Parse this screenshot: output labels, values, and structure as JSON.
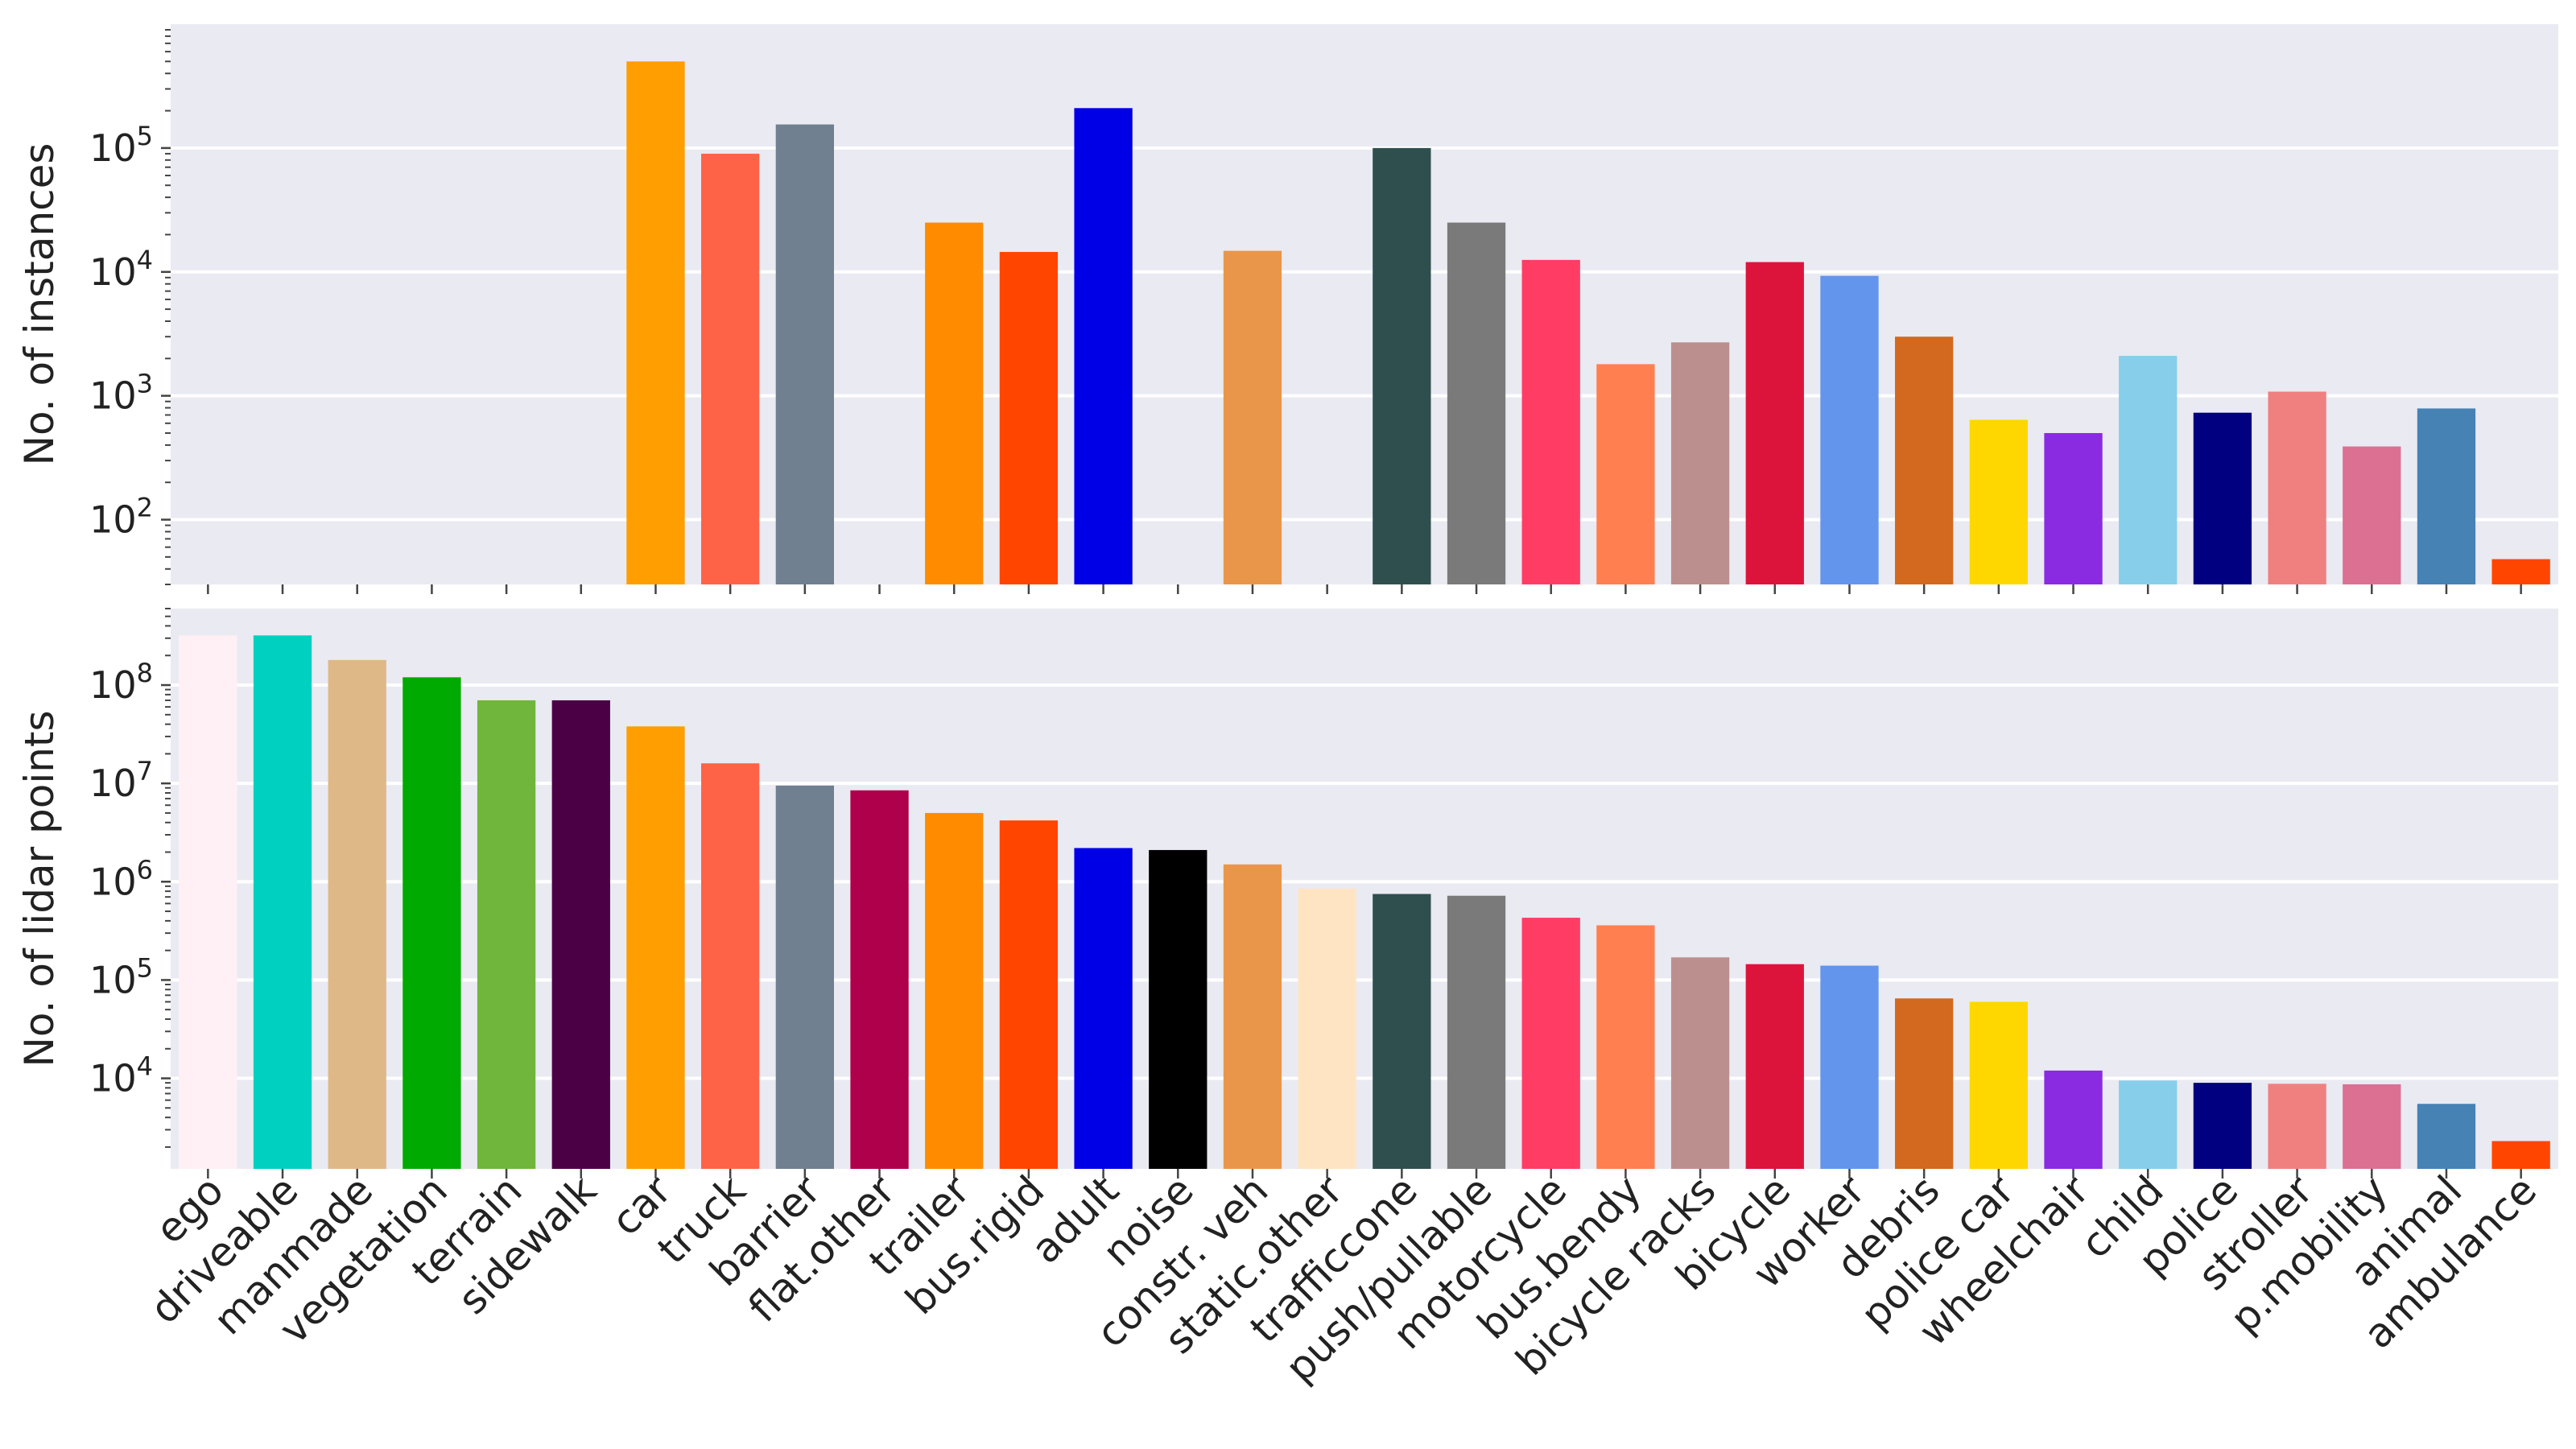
{
  "chart_data": [
    {
      "type": "bar",
      "yscale": "log",
      "ylabel": "No. of instances",
      "ylim": [
        30,
        1000000
      ],
      "y_ticks": [
        {
          "base": "10",
          "exp": "2",
          "value": 100
        },
        {
          "base": "10",
          "exp": "3",
          "value": 1000
        },
        {
          "base": "10",
          "exp": "4",
          "value": 10000
        },
        {
          "base": "10",
          "exp": "5",
          "value": 100000
        }
      ],
      "categories": [
        "ego",
        "driveable",
        "manmade",
        "vegetation",
        "terrain",
        "sidewalk",
        "car",
        "truck",
        "barrier",
        "flat.other",
        "trailer",
        "bus.rigid",
        "adult",
        "noise",
        "constr. veh",
        "static.other",
        "trafficcone",
        "push/pullable",
        "motorcycle",
        "bus.bendy",
        "bicycle racks",
        "bicycle",
        "worker",
        "debris",
        "police car",
        "wheelchair",
        "child",
        "police",
        "stroller",
        "p.mobility",
        "animal",
        "ambulance"
      ],
      "values": [
        null,
        null,
        null,
        null,
        null,
        null,
        500000,
        90000,
        155000,
        null,
        25000,
        14500,
        210000,
        null,
        14800,
        null,
        100000,
        25000,
        12500,
        1800,
        2700,
        12000,
        9300,
        3000,
        640,
        500,
        2100,
        730,
        1080,
        390,
        790,
        48
      ]
    },
    {
      "type": "bar",
      "yscale": "log",
      "ylabel": "No. of lidar points",
      "ylim": [
        1200,
        600000000
      ],
      "y_ticks": [
        {
          "base": "10",
          "exp": "4",
          "value": 10000
        },
        {
          "base": "10",
          "exp": "5",
          "value": 100000
        },
        {
          "base": "10",
          "exp": "6",
          "value": 1000000
        },
        {
          "base": "10",
          "exp": "7",
          "value": 10000000
        },
        {
          "base": "10",
          "exp": "8",
          "value": 100000000
        }
      ],
      "categories": [
        "ego",
        "driveable",
        "manmade",
        "vegetation",
        "terrain",
        "sidewalk",
        "car",
        "truck",
        "barrier",
        "flat.other",
        "trailer",
        "bus.rigid",
        "adult",
        "noise",
        "constr. veh",
        "static.other",
        "trafficcone",
        "push/pullable",
        "motorcycle",
        "bus.bendy",
        "bicycle racks",
        "bicycle",
        "worker",
        "debris",
        "police car",
        "wheelchair",
        "child",
        "police",
        "stroller",
        "p.mobility",
        "animal",
        "ambulance"
      ],
      "values": [
        320000000,
        320000000,
        180000000,
        120000000,
        70000000,
        70000000,
        38000000,
        16000000,
        9500000,
        8500000,
        5000000,
        4200000,
        2200000,
        2100000,
        1500000,
        850000,
        750000,
        720000,
        430000,
        360000,
        170000,
        145000,
        140000,
        65000,
        60000,
        12000,
        9500,
        9000,
        8800,
        8700,
        5500,
        2300
      ]
    }
  ],
  "colors": [
    "#fff0f5",
    "#00d0c0",
    "#deb887",
    "#00aa00",
    "#70b53c",
    "#4b0045",
    "#ff9e00",
    "#ff6347",
    "#708090",
    "#af004b",
    "#ff8c00",
    "#ff4500",
    "#0000e6",
    "#000000",
    "#e9964a",
    "#ffe4c4",
    "#2f4f4f",
    "#7a7a7a",
    "#ff3d64",
    "#ff7f50",
    "#bc8f8f",
    "#dc143c",
    "#6495ed",
    "#d2691e",
    "#ffd700",
    "#8a2be2",
    "#87ceeb",
    "#000080",
    "#f08080",
    "#db7093",
    "#4682b4",
    "#ff4500"
  ],
  "style": {
    "panel_bg": "#eaeaf2",
    "grid_color": "#ffffff",
    "text_color": "#222222"
  }
}
